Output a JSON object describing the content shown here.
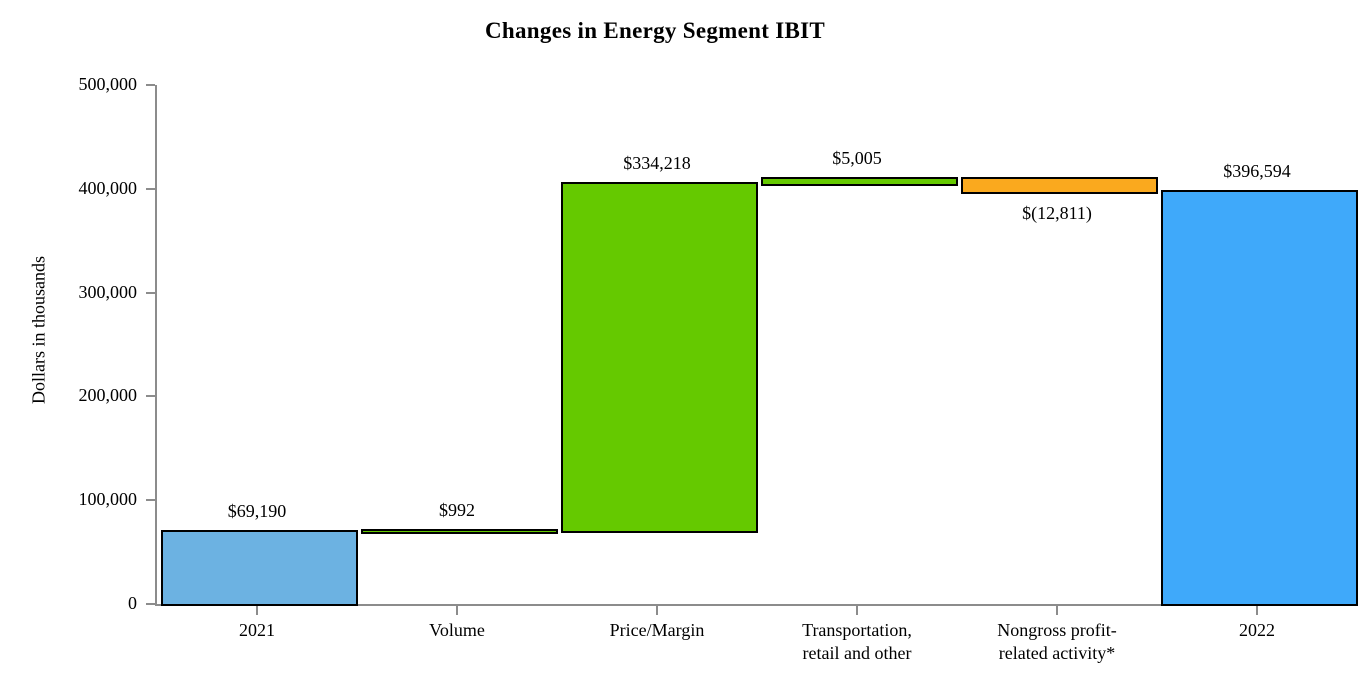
{
  "chart_data": {
    "type": "waterfall-bar",
    "title": "Changes in Energy Segment IBIT",
    "ylabel": "Dollars in thousands",
    "xlabel": "",
    "ylim": [
      0,
      500000
    ],
    "grid": false,
    "legend": false,
    "axis_color": "#8C8C8C",
    "bar_border_color": "#000000",
    "y_ticks": [
      {
        "value": 0,
        "label": "0"
      },
      {
        "value": 100000,
        "label": "100,000"
      },
      {
        "value": 200000,
        "label": "200,000"
      },
      {
        "value": 300000,
        "label": "300,000"
      },
      {
        "value": 400000,
        "label": "400,000"
      },
      {
        "value": 500000,
        "label": "500,000"
      }
    ],
    "categories": [
      "2021",
      "Volume",
      "Price/Margin",
      "Transportation,\nretail and other",
      "Nongross profit-\nrelated activity*",
      "2022"
    ],
    "bars": [
      {
        "category": "2021",
        "kind": "total",
        "value": 69190,
        "value_label": "$69,190",
        "label_position": "above",
        "color": "#6CB2E2"
      },
      {
        "category": "Volume",
        "kind": "delta",
        "value": 992,
        "value_label": "$992",
        "label_position": "above",
        "color": "#65C900"
      },
      {
        "category": "Price/Margin",
        "kind": "delta",
        "value": 334218,
        "value_label": "$334,218",
        "label_position": "above",
        "color": "#65C900"
      },
      {
        "category": "Transportation,\nretail and other",
        "kind": "delta",
        "value": 5005,
        "value_label": "$5,005",
        "label_position": "above",
        "color": "#65C900"
      },
      {
        "category": "Nongross profit-\nrelated activity*",
        "kind": "delta",
        "value": -12811,
        "value_label": "$(12,811)",
        "label_position": "below",
        "color": "#FAA91E"
      },
      {
        "category": "2022",
        "kind": "total",
        "value": 396594,
        "value_label": "$396,594",
        "label_position": "above",
        "color": "#3FA9FA"
      }
    ]
  }
}
